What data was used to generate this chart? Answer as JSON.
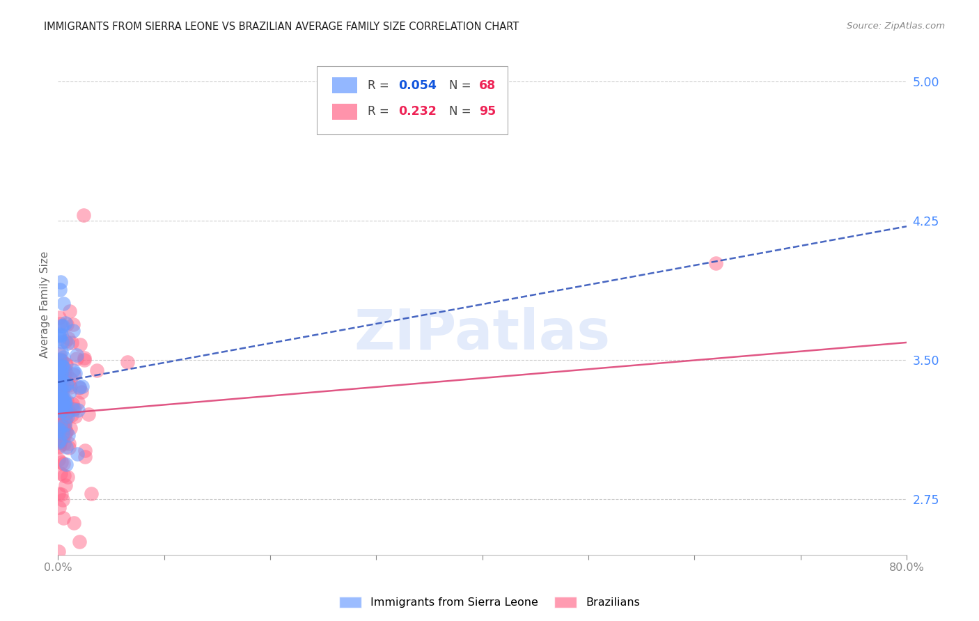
{
  "title": "IMMIGRANTS FROM SIERRA LEONE VS BRAZILIAN AVERAGE FAMILY SIZE CORRELATION CHART",
  "source": "Source: ZipAtlas.com",
  "ylabel": "Average Family Size",
  "yticks": [
    2.75,
    3.5,
    4.25,
    5.0
  ],
  "xmin": 0.0,
  "xmax": 80.0,
  "ymin": 2.45,
  "ymax": 5.15,
  "watermark": "ZIPatlas",
  "sl_color": "#6699ff",
  "br_color": "#ff6688",
  "sl_trend_color": "#3355bb",
  "br_trend_color": "#dd4477",
  "grid_color": "#cccccc",
  "background_color": "#ffffff",
  "tick_color": "#4488ff",
  "sl_R": "0.054",
  "sl_N": "68",
  "br_R": "0.232",
  "br_N": "95",
  "legend_label_sl": "Immigrants from Sierra Leone",
  "legend_label_br": "Brazilians",
  "sl_trend_intercept": 3.38,
  "sl_trend_slope": 0.0105,
  "br_trend_intercept": 3.21,
  "br_trend_slope": 0.0048
}
